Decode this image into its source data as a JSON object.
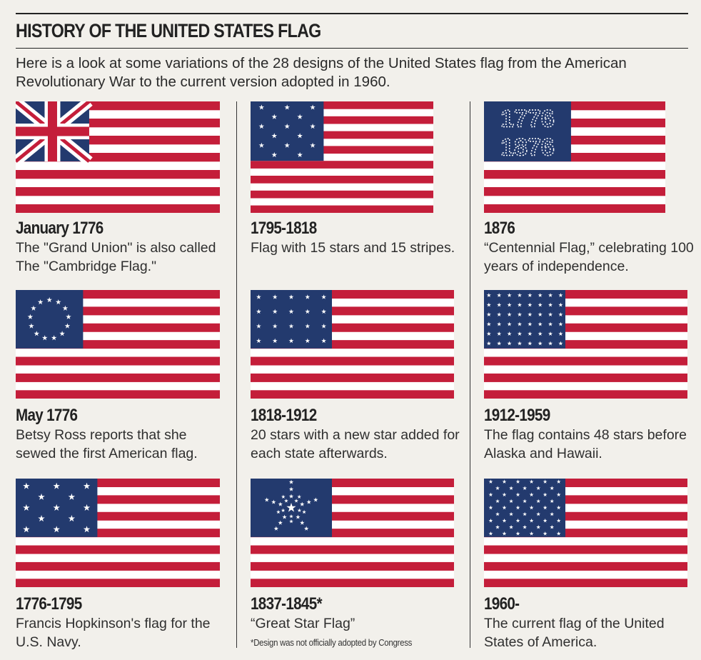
{
  "header": {
    "title": "HISTORY OF THE UNITED STATES FLAG",
    "intro": "Here is a look at some variations of the 28 designs of the United States flag from the American Revolutionary War to the current version adopted in 1960."
  },
  "colors": {
    "red": "#c41e3a",
    "white": "#ffffff",
    "blue": "#233a6e",
    "background": "#f2f0eb"
  },
  "flags": [
    {
      "title": "January 1776",
      "description": "The \"Grand Union\" is also called The \"Cambridge Flag.\"",
      "canton": "union-jack"
    },
    {
      "title": "1795-1818",
      "description": "Flag with 15 stars and 15 stripes.",
      "canton": "15-stars"
    },
    {
      "title": "1876",
      "description": "“Centennial Flag,” celebrating 100 years of independence.",
      "canton": "centennial-1776-1876"
    },
    {
      "title": "May 1776",
      "description": "Betsy Ross reports that she sewed the first American flag.",
      "canton": "13-stars-circle"
    },
    {
      "title": "1818-1912",
      "description": "20 stars with a new star added for each state afterwards.",
      "canton": "20-stars"
    },
    {
      "title": "1912-1959",
      "description": "The flag contains 48 stars before Alaska and Hawaii.",
      "canton": "48-stars"
    },
    {
      "title": "1776-1795",
      "description": "Francis Hopkinson's flag for the U.S. Navy.",
      "canton": "13-stars-rows"
    },
    {
      "title": "1837-1845*",
      "description": "“Great Star Flag”",
      "footnote": "*Design was not officially adopted by Congress",
      "canton": "great-star"
    },
    {
      "title": "1960-",
      "description": "The current flag of the United States of America.",
      "canton": "50-stars"
    }
  ]
}
